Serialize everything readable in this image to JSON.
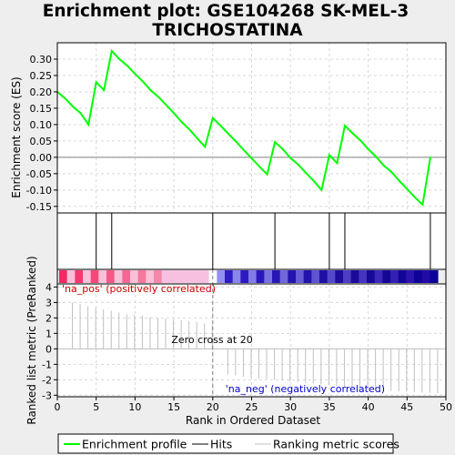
{
  "title_line1": "Enrichment plot: GSE104268 SK-MEL-3",
  "title_line2": "TRICHOSTATINA",
  "chart_data": {
    "type": "line",
    "xlabel": "Rank in Ordered Dataset",
    "xlim": [
      0,
      50
    ],
    "x_ticks": [
      0,
      5,
      10,
      15,
      20,
      25,
      30,
      35,
      40,
      45,
      50
    ],
    "es_panel": {
      "ylabel": "Enrichment score (ES)",
      "ylim": [
        -0.17,
        0.35
      ],
      "y_ticks": [
        0.3,
        0.25,
        0.2,
        0.15,
        0.1,
        0.05,
        0.0,
        -0.05,
        -0.1,
        -0.15
      ],
      "y_tick_labels": [
        "0.30",
        "0.25",
        "0.20",
        "0.15",
        "0.10",
        "0.05",
        "0.00",
        "-0.05",
        "-0.10",
        "-0.15"
      ],
      "series_name": "Enrichment profile",
      "color": "#00ff00",
      "points": [
        [
          0,
          0.2
        ],
        [
          1,
          0.18
        ],
        [
          2,
          0.155
        ],
        [
          3,
          0.135
        ],
        [
          4,
          0.1
        ],
        [
          5,
          0.23
        ],
        [
          6,
          0.205
        ],
        [
          7,
          0.325
        ],
        [
          8,
          0.3
        ],
        [
          9,
          0.28
        ],
        [
          10,
          0.255
        ],
        [
          11,
          0.232
        ],
        [
          12,
          0.205
        ],
        [
          13,
          0.185
        ],
        [
          14,
          0.16
        ],
        [
          15,
          0.135
        ],
        [
          16,
          0.108
        ],
        [
          17,
          0.085
        ],
        [
          18,
          0.058
        ],
        [
          19,
          0.032
        ],
        [
          20,
          0.12
        ],
        [
          21,
          0.097
        ],
        [
          22,
          0.072
        ],
        [
          23,
          0.048
        ],
        [
          24,
          0.022
        ],
        [
          25,
          -0.003
        ],
        [
          26,
          -0.028
        ],
        [
          27,
          -0.052
        ],
        [
          28,
          0.047
        ],
        [
          29,
          0.025
        ],
        [
          30,
          -0.002
        ],
        [
          31,
          -0.022
        ],
        [
          32,
          -0.048
        ],
        [
          33,
          -0.072
        ],
        [
          34,
          -0.1
        ],
        [
          35,
          0.007
        ],
        [
          36,
          -0.018
        ],
        [
          37,
          0.097
        ],
        [
          38,
          0.073
        ],
        [
          39,
          0.052
        ],
        [
          40,
          0.025
        ],
        [
          41,
          0.002
        ],
        [
          42,
          -0.025
        ],
        [
          43,
          -0.045
        ],
        [
          44,
          -0.072
        ],
        [
          45,
          -0.097
        ],
        [
          46,
          -0.122
        ],
        [
          47,
          -0.145
        ],
        [
          48,
          0.0
        ]
      ]
    },
    "hits": [
      5,
      7,
      20,
      28,
      35,
      37,
      48
    ],
    "ranked_panel": {
      "ylabel": "Ranked list metric (PreRanked)",
      "ylim": [
        -3.1,
        4.2
      ],
      "y_ticks": [
        4,
        3,
        2,
        1,
        0,
        -1,
        -2,
        -3
      ],
      "y_tick_labels": [
        "4",
        "3",
        "2",
        "1",
        "0",
        "-1",
        "-2",
        "-3"
      ],
      "color": "#c0c0c0",
      "values": [
        [
          1,
          3.0
        ],
        [
          2,
          2.9
        ],
        [
          3,
          2.75
        ],
        [
          4,
          2.65
        ],
        [
          5,
          2.55
        ],
        [
          6,
          2.45
        ],
        [
          7,
          2.35
        ],
        [
          8,
          2.25
        ],
        [
          9,
          2.2
        ],
        [
          10,
          2.15
        ],
        [
          11,
          2.05
        ],
        [
          12,
          2.0
        ],
        [
          13,
          1.95
        ],
        [
          14,
          1.9
        ],
        [
          15,
          1.85
        ],
        [
          16,
          1.8
        ],
        [
          17,
          1.75
        ],
        [
          18,
          1.65
        ],
        [
          19,
          1.55
        ],
        [
          20,
          0.0
        ],
        [
          21,
          -1.65
        ],
        [
          22,
          -1.72
        ],
        [
          23,
          -1.8
        ],
        [
          24,
          -1.85
        ],
        [
          25,
          -1.9
        ],
        [
          26,
          -1.95
        ],
        [
          27,
          -2.0
        ],
        [
          28,
          -2.05
        ],
        [
          29,
          -2.1
        ],
        [
          30,
          -2.15
        ],
        [
          31,
          -2.2
        ],
        [
          32,
          -2.25
        ],
        [
          33,
          -2.3
        ],
        [
          34,
          -2.35
        ],
        [
          35,
          -2.4
        ],
        [
          36,
          -2.45
        ],
        [
          37,
          -2.5
        ],
        [
          38,
          -2.55
        ],
        [
          39,
          -2.6
        ],
        [
          40,
          -2.65
        ],
        [
          41,
          -2.7
        ],
        [
          42,
          -2.72
        ],
        [
          43,
          -2.75
        ],
        [
          44,
          -2.78
        ],
        [
          45,
          -2.8
        ],
        [
          46,
          -2.82
        ],
        [
          47,
          -2.84
        ],
        [
          48,
          -2.86
        ]
      ],
      "zero_cross_label": "Zero cross at 20",
      "zero_cross_rank": 20,
      "pos_label": "'na_pos' (positively correlated)",
      "neg_label": "'na_neg' (negatively correlated)",
      "pos_color": "#cc0000",
      "neg_color": "#0000cc"
    },
    "legend": {
      "placement": "bottom",
      "items": [
        {
          "label": "Enrichment profile",
          "color": "#00ff00",
          "style": "line"
        },
        {
          "label": "Hits",
          "color": "#000000",
          "style": "line"
        },
        {
          "label": "Ranking metric scores",
          "color": "#c0c0c0",
          "style": "line"
        }
      ]
    }
  }
}
